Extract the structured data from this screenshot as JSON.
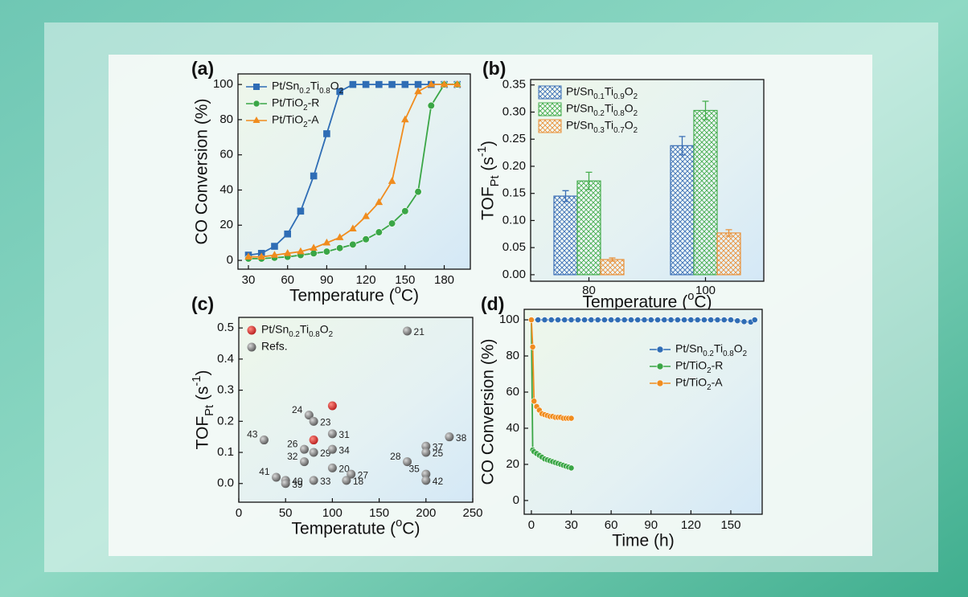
{
  "chart_data": [
    {
      "type": "line",
      "panel_label": "(a)",
      "xlabel": "Temperature (oC)",
      "ylabel": "CO Conversion (%)",
      "xlim": [
        22,
        200
      ],
      "xticks": [
        30,
        60,
        90,
        120,
        150,
        180
      ],
      "ylim": [
        -5,
        106
      ],
      "yticks": [
        0,
        20,
        40,
        60,
        80,
        100
      ],
      "legend": "upper left",
      "series": [
        {
          "name": "Pt/Sn0.2Ti0.8O2",
          "color": "#2f6db5",
          "marker": "square",
          "x": [
            30,
            40,
            50,
            60,
            70,
            80,
            90,
            100,
            110,
            120,
            130,
            140,
            150,
            160,
            170,
            180,
            190
          ],
          "values": [
            3,
            4,
            8,
            15,
            28,
            48,
            72,
            96,
            100,
            100,
            100,
            100,
            100,
            100,
            100,
            100,
            100
          ]
        },
        {
          "name": "Pt/TiO2-R",
          "color": "#3aa646",
          "marker": "circle",
          "x": [
            30,
            40,
            50,
            60,
            70,
            80,
            90,
            100,
            110,
            120,
            130,
            140,
            150,
            160,
            170,
            180,
            190
          ],
          "values": [
            1,
            1,
            1.5,
            2,
            3,
            4,
            5,
            7,
            9,
            12,
            16,
            21,
            28,
            39,
            88,
            100,
            100
          ]
        },
        {
          "name": "Pt/TiO2-A",
          "color": "#f08c1e",
          "marker": "triangle",
          "x": [
            30,
            40,
            50,
            60,
            70,
            80,
            90,
            100,
            110,
            120,
            130,
            140,
            150,
            160,
            170,
            180,
            190
          ],
          "values": [
            2,
            2,
            3,
            4,
            5,
            7,
            10,
            13,
            18,
            25,
            33,
            45,
            80,
            96,
            100,
            100,
            100
          ]
        }
      ]
    },
    {
      "type": "bar",
      "panel_label": "(b)",
      "xlabel": "Temperature (oC)",
      "ylabel": "TOFPt (s-1)",
      "categories": [
        "80",
        "100"
      ],
      "ylim": [
        -0.012,
        0.36
      ],
      "yticks": [
        {
          "value": 0,
          "label": "0.00"
        },
        {
          "value": 0.05,
          "label": "0.05"
        },
        {
          "value": 0.1,
          "label": "0.10"
        },
        {
          "value": 0.15,
          "label": "0.15"
        },
        {
          "value": 0.2,
          "label": "0.20"
        },
        {
          "value": 0.25,
          "label": "0.25"
        },
        {
          "value": 0.3,
          "label": "0.30"
        },
        {
          "value": 0.35,
          "label": "0.35"
        }
      ],
      "legend": "upper left",
      "hatch": "crosshatch",
      "series": [
        {
          "name": "Pt/Sn0.1Ti0.9O2",
          "color": "#3b6fb5",
          "values": [
            0.145,
            0.238
          ],
          "errors": [
            0.01,
            0.017
          ]
        },
        {
          "name": "Pt/Sn0.2Ti0.8O2",
          "color": "#45ad4e",
          "values": [
            0.173,
            0.303
          ],
          "errors": [
            0.016,
            0.017
          ]
        },
        {
          "name": "Pt/Sn0.3Ti0.7O2",
          "color": "#e8913a",
          "values": [
            0.028,
            0.077
          ],
          "errors": [
            0.003,
            0.006
          ]
        }
      ]
    },
    {
      "type": "scatter",
      "panel_label": "(c)",
      "xlabel": "Temperatute (oC)",
      "ylabel": "TOFPt (s-1)",
      "xlim": [
        0,
        250
      ],
      "xticks": [
        0,
        50,
        100,
        150,
        200,
        250
      ],
      "ylim": [
        -0.06,
        0.534
      ],
      "yticks": [
        {
          "value": 0,
          "label": "0.0"
        },
        {
          "value": 0.1,
          "label": "0.1"
        },
        {
          "value": 0.2,
          "label": "0.2"
        },
        {
          "value": 0.3,
          "label": "0.3"
        },
        {
          "value": 0.4,
          "label": "0.4"
        },
        {
          "value": 0.5,
          "label": "0.5"
        }
      ],
      "legend": "upper left",
      "series": [
        {
          "name": "Pt/Sn0.2Ti0.8O2",
          "color": "#d62728",
          "x": [
            100,
            80
          ],
          "values": [
            0.25,
            0.14
          ]
        },
        {
          "name": "Refs.",
          "color": "#7f7f7f",
          "x": [
            180,
            75,
            80,
            100,
            27,
            70,
            80,
            100,
            70,
            40,
            50,
            50,
            80,
            100,
            120,
            115,
            200,
            200,
            225,
            180,
            200,
            200
          ],
          "values": [
            0.49,
            0.22,
            0.2,
            0.16,
            0.14,
            0.11,
            0.1,
            0.11,
            0.07,
            0.02,
            0.01,
            0,
            0.01,
            0.05,
            0.03,
            0.01,
            0.12,
            0.1,
            0.15,
            0.07,
            0.03,
            0.01
          ],
          "point_labels": [
            "21",
            "24",
            "23",
            "31",
            "43",
            "26",
            "29",
            "34",
            "32",
            "41",
            "40",
            "39",
            "33",
            "20",
            "27",
            "18",
            "37",
            "25",
            "38",
            "28",
            "35",
            "42"
          ]
        }
      ]
    },
    {
      "type": "line",
      "panel_label": "(d)",
      "xlabel": "Time (h)",
      "ylabel": "CO Conversion (%)",
      "xlim": [
        -5.4,
        173.6
      ],
      "xticks": [
        0,
        30,
        60,
        90,
        120,
        150
      ],
      "ylim": [
        -7.6,
        105.8
      ],
      "yticks": [
        0,
        20,
        40,
        60,
        80,
        100
      ],
      "legend": "center right",
      "series": [
        {
          "name": "Pt/Sn0.2Ti0.8O2",
          "color": "#2f6db5",
          "marker": "circle",
          "x": [
            0,
            5,
            10,
            15,
            20,
            25,
            30,
            35,
            40,
            45,
            50,
            55,
            60,
            65,
            70,
            75,
            80,
            85,
            90,
            95,
            100,
            105,
            110,
            115,
            120,
            125,
            130,
            135,
            140,
            145,
            150,
            155,
            160,
            165,
            168
          ],
          "values": [
            100,
            100,
            100,
            100,
            100,
            100,
            100,
            100,
            100,
            100,
            100,
            100,
            100,
            100,
            100,
            100,
            100,
            100,
            100,
            100,
            100,
            100,
            100,
            100,
            100,
            100,
            100,
            100,
            100,
            100,
            100,
            99.5,
            99,
            98.8,
            100
          ]
        },
        {
          "name": "Pt/TiO2-R",
          "color": "#3aa646",
          "marker": "circle",
          "x": [
            0,
            1,
            2,
            4,
            6,
            8,
            10,
            12,
            14,
            16,
            18,
            20,
            22,
            24,
            26,
            28,
            30
          ],
          "values": [
            100,
            28,
            27,
            26,
            25,
            24,
            23,
            22.5,
            22,
            21.5,
            21,
            20.5,
            20,
            19.5,
            19,
            18.5,
            18
          ]
        },
        {
          "name": "Pt/TiO2-A",
          "color": "#f08c1e",
          "marker": "circle",
          "x": [
            0,
            1,
            2,
            4,
            6,
            8,
            10,
            12,
            14,
            16,
            18,
            20,
            22,
            24,
            26,
            28,
            30
          ],
          "values": [
            100,
            85,
            55,
            52,
            50,
            48,
            47.5,
            47,
            46.5,
            46.5,
            46,
            46,
            46,
            45.5,
            45.5,
            45.5,
            45.5
          ]
        }
      ]
    }
  ]
}
